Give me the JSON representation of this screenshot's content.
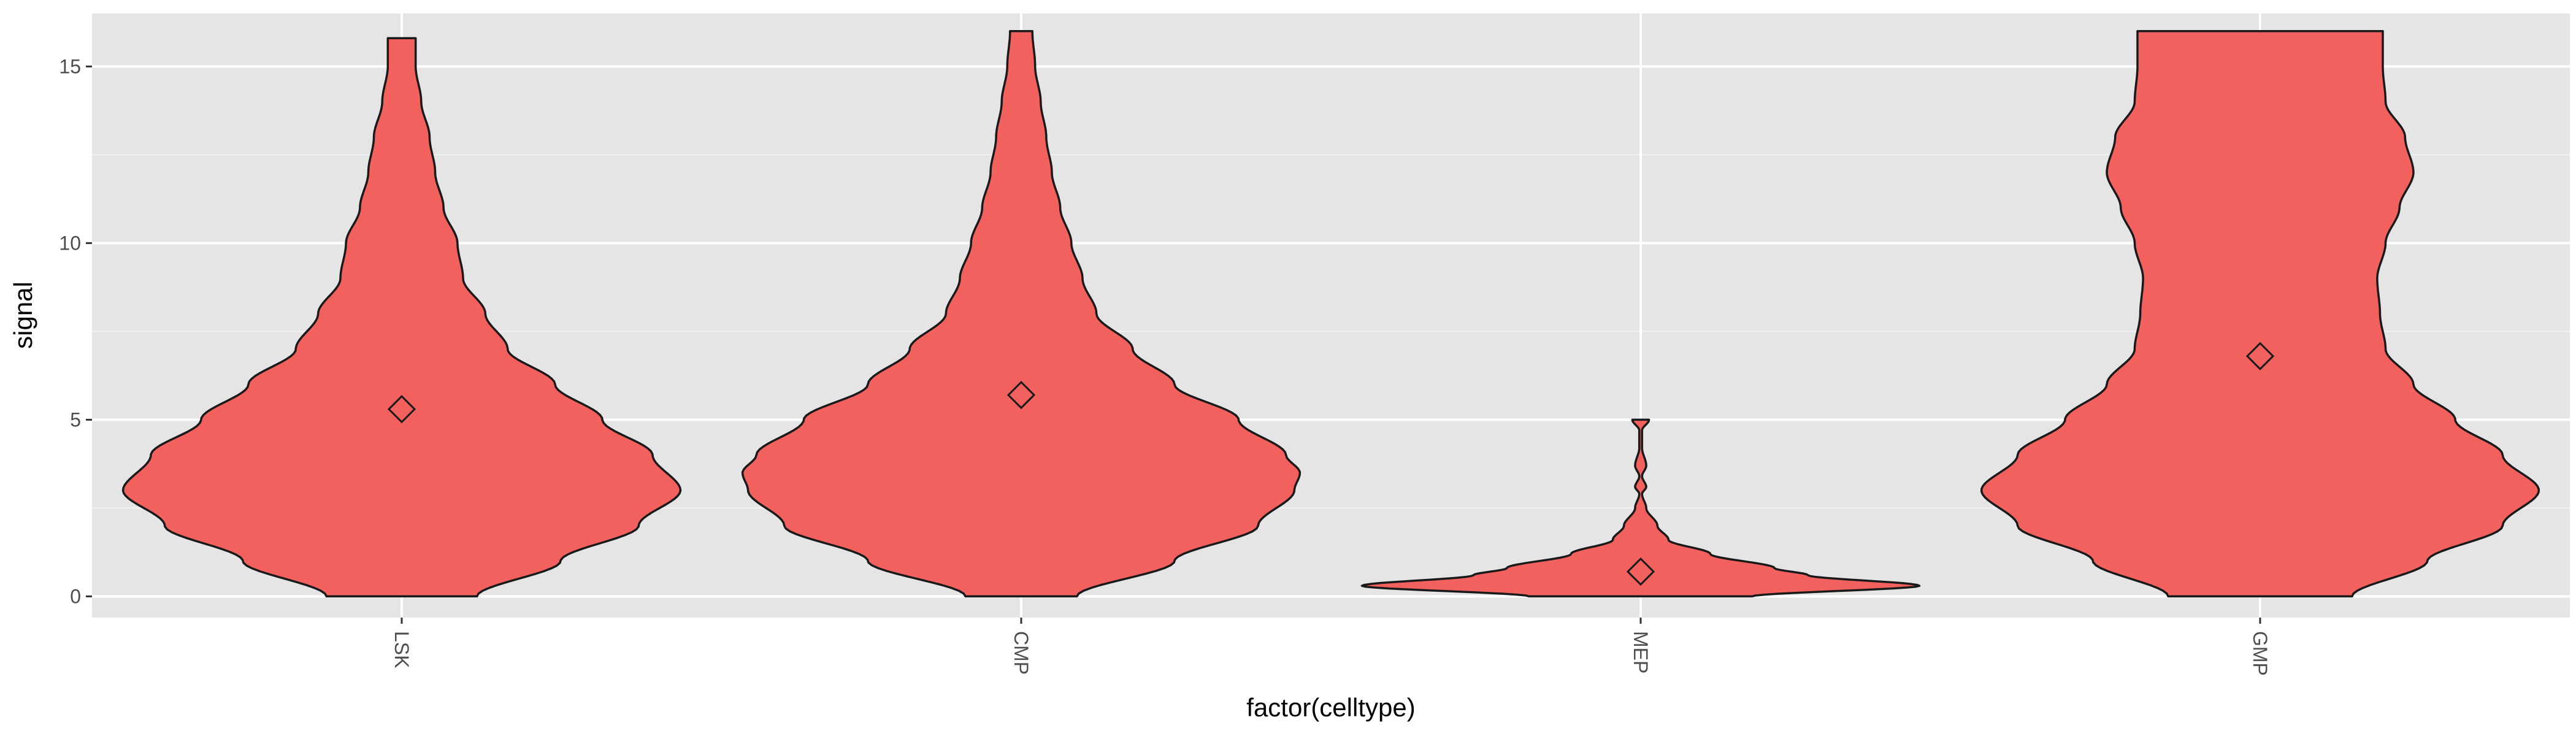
{
  "colors": {
    "panel_background": "#E5E5E5",
    "grid_major": "#FFFFFF",
    "grid_minor": "#F2F2F2",
    "violin_fill": "#F2615E",
    "violin_stroke": "#1A1A1A",
    "mean_marker_fill": "#F2615E",
    "tick_color": "#333333"
  },
  "chart_data": {
    "type": "violin",
    "xlabel": "factor(celltype)",
    "ylabel": "signal",
    "categories": [
      "LSK",
      "CMP",
      "MEP",
      "GMP"
    ],
    "ylim": [
      -0.6,
      16.5
    ],
    "yticks": [
      0,
      5,
      10,
      15
    ],
    "grid": true,
    "x_tick_label_rotation": 90,
    "mean_marker": "diamond",
    "means": [
      5.3,
      5.7,
      0.7,
      6.8
    ],
    "violins": [
      {
        "category": "LSK",
        "ymin": 0,
        "ymax": 15.8,
        "profile": [
          [
            0,
            0.27
          ],
          [
            1,
            0.57
          ],
          [
            2,
            0.85
          ],
          [
            3,
            1.0
          ],
          [
            4,
            0.9
          ],
          [
            5,
            0.72
          ],
          [
            6,
            0.55
          ],
          [
            7,
            0.38
          ],
          [
            8,
            0.3
          ],
          [
            9,
            0.22
          ],
          [
            10,
            0.2
          ],
          [
            11,
            0.15
          ],
          [
            12,
            0.12
          ],
          [
            13,
            0.1
          ],
          [
            14,
            0.07
          ],
          [
            15,
            0.05
          ],
          [
            15.8,
            0.05
          ]
        ]
      },
      {
        "category": "CMP",
        "ymin": 0,
        "ymax": 16,
        "profile": [
          [
            0,
            0.2
          ],
          [
            1,
            0.55
          ],
          [
            2,
            0.85
          ],
          [
            3,
            0.98
          ],
          [
            3.5,
            1.0
          ],
          [
            4,
            0.95
          ],
          [
            5,
            0.78
          ],
          [
            6,
            0.55
          ],
          [
            7,
            0.4
          ],
          [
            8,
            0.27
          ],
          [
            9,
            0.22
          ],
          [
            10,
            0.18
          ],
          [
            11,
            0.14
          ],
          [
            12,
            0.11
          ],
          [
            13,
            0.09
          ],
          [
            14,
            0.07
          ],
          [
            15,
            0.05
          ],
          [
            16,
            0.04
          ]
        ]
      },
      {
        "category": "MEP",
        "ymin": 0,
        "ymax": 5,
        "profile": [
          [
            0,
            0.4
          ],
          [
            0.3,
            1.0
          ],
          [
            0.6,
            0.6
          ],
          [
            0.8,
            0.48
          ],
          [
            1.2,
            0.25
          ],
          [
            1.6,
            0.1
          ],
          [
            2,
            0.06
          ],
          [
            2.5,
            0.02
          ],
          [
            2.9,
            0.005
          ],
          [
            3.1,
            0.02
          ],
          [
            3.4,
            0.005
          ],
          [
            3.7,
            0.02
          ],
          [
            4.2,
            0.005
          ],
          [
            4.7,
            0.005
          ],
          [
            5,
            0.03
          ]
        ]
      },
      {
        "category": "GMP",
        "ymin": 0,
        "ymax": 16,
        "profile": [
          [
            0,
            0.33
          ],
          [
            1,
            0.6
          ],
          [
            2,
            0.87
          ],
          [
            3,
            1.0
          ],
          [
            4,
            0.87
          ],
          [
            5,
            0.7
          ],
          [
            6,
            0.55
          ],
          [
            7,
            0.45
          ],
          [
            8,
            0.43
          ],
          [
            9,
            0.42
          ],
          [
            10,
            0.45
          ],
          [
            11,
            0.5
          ],
          [
            12,
            0.55
          ],
          [
            13,
            0.52
          ],
          [
            14,
            0.45
          ],
          [
            15,
            0.44
          ],
          [
            16,
            0.44
          ]
        ]
      }
    ]
  }
}
